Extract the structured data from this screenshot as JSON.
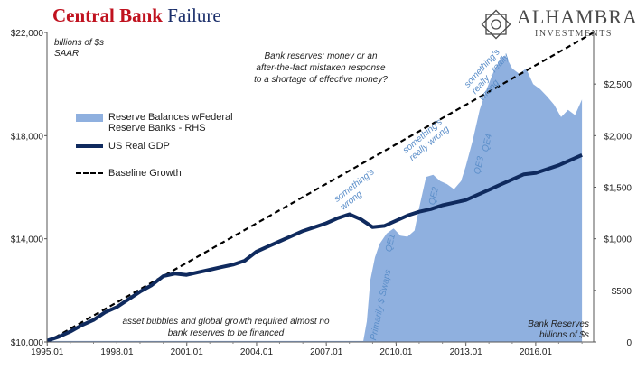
{
  "header": {
    "title_word1": "Central Bank",
    "title_word2": "Failure",
    "logo_name": "ALHAMBRA",
    "logo_sub": "INVESTMENTS",
    "logo_icon": "alhambra-star-icon"
  },
  "chart_data": {
    "type": "line",
    "x_ticks": [
      "1995.01",
      "1998.01",
      "2001.01",
      "2004.01",
      "2007.01",
      "2010.01",
      "2013.01",
      "2016.01"
    ],
    "left_axis": {
      "label_line1": "billions of $s",
      "label_line2": "SAAR",
      "ticks": [
        "$10,000",
        "$14,000",
        "$18,000",
        "$22,000"
      ],
      "range": [
        10000,
        22000
      ]
    },
    "right_axis": {
      "label_line1": "Bank Reserves",
      "label_line2": "billions of $s",
      "ticks": [
        "0",
        "$500",
        "$1,000",
        "$1,500",
        "$2,000",
        "$2,500"
      ],
      "range": [
        0,
        3000
      ]
    },
    "legend": {
      "reserves": "Reserve Balances wFederal Reserve Banks - RHS",
      "gdp": "US Real GDP",
      "baseline": "Baseline Growth"
    },
    "colors": {
      "reserves": "#8fb0df",
      "gdp": "#0f2a5e",
      "baseline": "#000000"
    },
    "series": [
      {
        "name": "US Real GDP",
        "axis": "left",
        "x": [
          1995.0,
          1995.5,
          1996.0,
          1996.5,
          1997.0,
          1997.5,
          1998.0,
          1998.5,
          1999.0,
          1999.5,
          2000.0,
          2000.5,
          2001.0,
          2001.5,
          2002.0,
          2002.5,
          2003.0,
          2003.5,
          2004.0,
          2004.5,
          2005.0,
          2005.5,
          2006.0,
          2006.5,
          2007.0,
          2007.5,
          2008.0,
          2008.5,
          2009.0,
          2009.5,
          2010.0,
          2010.5,
          2011.0,
          2011.5,
          2012.0,
          2012.5,
          2013.0,
          2013.5,
          2014.0,
          2014.5,
          2015.0,
          2015.5,
          2016.0,
          2016.5,
          2017.0,
          2017.5,
          2018.0
        ],
        "values": [
          10050,
          10200,
          10400,
          10650,
          10850,
          11150,
          11350,
          11650,
          11950,
          12200,
          12550,
          12650,
          12600,
          12700,
          12800,
          12900,
          13000,
          13150,
          13500,
          13700,
          13900,
          14100,
          14300,
          14450,
          14600,
          14800,
          14950,
          14750,
          14450,
          14500,
          14700,
          14900,
          15050,
          15150,
          15300,
          15400,
          15500,
          15700,
          15900,
          16100,
          16300,
          16500,
          16550,
          16700,
          16850,
          17050,
          17250
        ]
      },
      {
        "name": "Baseline Growth",
        "axis": "left",
        "x": [
          1995.0,
          2018.5
        ],
        "values": [
          10000,
          22000
        ]
      },
      {
        "name": "Reserve Balances wFederal Reserve Banks - RHS",
        "axis": "right",
        "x": [
          1995.0,
          2008.6,
          2008.75,
          2008.9,
          2009.1,
          2009.3,
          2009.6,
          2009.9,
          2010.2,
          2010.5,
          2010.8,
          2011.0,
          2011.3,
          2011.6,
          2011.9,
          2012.2,
          2012.5,
          2012.8,
          2013.0,
          2013.3,
          2013.6,
          2013.9,
          2014.2,
          2014.5,
          2014.7,
          2015.0,
          2015.3,
          2015.6,
          2015.9,
          2016.2,
          2016.5,
          2016.8,
          2017.1,
          2017.4,
          2017.7,
          2018.0
        ],
        "values": [
          10,
          10,
          200,
          600,
          820,
          950,
          1050,
          1100,
          1030,
          1020,
          1080,
          1300,
          1600,
          1620,
          1560,
          1530,
          1480,
          1560,
          1700,
          1950,
          2250,
          2450,
          2620,
          2750,
          2780,
          2650,
          2600,
          2650,
          2500,
          2450,
          2380,
          2300,
          2180,
          2250,
          2200,
          2350
        ]
      }
    ],
    "annotations": {
      "top_text": "Bank reserves: money or an after-the-fact mistaken response to a shortage of effective money?",
      "bottom_text": "asset bubbles and global growth required almost no bank reserves to be financed",
      "swaps": "Primarily $ Swaps",
      "qe1": "QE1",
      "qe2": "QE2",
      "qe3": "QE3",
      "qe4": "QE4",
      "wrong1": "something's wrong",
      "wrong2": "something's really wrong",
      "wrong3": "something's really , really wrong"
    }
  }
}
